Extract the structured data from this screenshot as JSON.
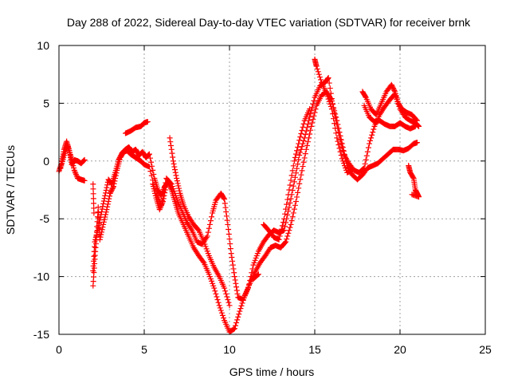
{
  "chart_data": {
    "type": "scatter",
    "title": "Day 288 of 2022, Sidereal Day-to-day VTEC variation (SDTVAR) for receiver brnk",
    "xlabel": "GPS time / hours",
    "ylabel": "SDTVAR / TECUs",
    "xlim": [
      0,
      25
    ],
    "ylim": [
      -15,
      10
    ],
    "xticks": [
      "0",
      "5",
      "10",
      "15",
      "20",
      "25"
    ],
    "yticks": [
      "-15",
      "-10",
      "-5",
      "0",
      "5",
      "10"
    ],
    "grid": true,
    "marker": "plus",
    "color": "#ff0000",
    "series": [
      {
        "values": [
          [
            0.0,
            -0.9
          ],
          [
            0.15,
            -0.2
          ],
          [
            0.3,
            1.0
          ],
          [
            0.45,
            1.7
          ],
          [
            0.6,
            0.9
          ],
          [
            0.75,
            -0.3
          ],
          [
            0.9,
            0.1
          ],
          [
            1.1,
            0.0
          ],
          [
            1.3,
            -0.2
          ],
          [
            1.5,
            0.1
          ],
          [
            2.0,
            -9.5
          ],
          [
            2.1,
            -7.0
          ],
          [
            2.3,
            -5.8
          ],
          [
            2.5,
            -4.4
          ],
          [
            2.7,
            -3.0
          ],
          [
            2.9,
            -1.6
          ],
          [
            3.1,
            -2.0
          ],
          [
            3.3,
            -1.0
          ],
          [
            3.5,
            0.1
          ],
          [
            3.7,
            0.7
          ],
          [
            3.9,
            1.0
          ],
          [
            4.1,
            1.2
          ],
          [
            4.3,
            0.8
          ],
          [
            4.5,
            1.0
          ],
          [
            4.7,
            0.5
          ],
          [
            4.9,
            0.8
          ],
          [
            5.1,
            0.3
          ],
          [
            5.3,
            0.6
          ],
          [
            5.6,
            -1.5
          ],
          [
            5.8,
            -2.5
          ],
          [
            6.0,
            -3.0
          ],
          [
            6.2,
            -2.2
          ],
          [
            6.4,
            -1.8
          ],
          [
            6.6,
            -2.5
          ],
          [
            6.8,
            -3.5
          ],
          [
            7.0,
            -4.5
          ],
          [
            7.3,
            -5.5
          ],
          [
            7.6,
            -6.5
          ],
          [
            7.9,
            -7.5
          ],
          [
            8.2,
            -8.2
          ],
          [
            8.5,
            -8.8
          ],
          [
            8.8,
            -9.8
          ],
          [
            9.1,
            -11.0
          ],
          [
            9.4,
            -12.5
          ],
          [
            9.7,
            -13.8
          ],
          [
            10.0,
            -14.8
          ],
          [
            10.3,
            -14.5
          ],
          [
            10.6,
            -13.0
          ],
          [
            10.9,
            -11.6
          ],
          [
            11.2,
            -10.6
          ],
          [
            11.5,
            -9.6
          ],
          [
            11.8,
            -8.8
          ],
          [
            12.1,
            -8.2
          ],
          [
            12.4,
            -7.5
          ],
          [
            12.7,
            -7.3
          ],
          [
            13.0,
            -7.5
          ],
          [
            13.3,
            -7.0
          ],
          [
            13.6,
            -5.5
          ],
          [
            13.9,
            -3.5
          ],
          [
            14.2,
            -1.2
          ],
          [
            14.5,
            1.0
          ],
          [
            14.8,
            3.0
          ],
          [
            15.1,
            4.8
          ],
          [
            15.4,
            5.7
          ],
          [
            15.7,
            6.0
          ],
          [
            16.0,
            5.2
          ],
          [
            16.3,
            3.5
          ],
          [
            16.6,
            1.5
          ],
          [
            16.9,
            -0.4
          ],
          [
            17.2,
            -1.2
          ],
          [
            17.5,
            -1.6
          ],
          [
            17.8,
            -1.2
          ],
          [
            18.1,
            -0.6
          ],
          [
            18.4,
            -0.4
          ],
          [
            18.7,
            -0.2
          ],
          [
            19.0,
            0.2
          ],
          [
            19.3,
            0.6
          ],
          [
            19.6,
            1.0
          ],
          [
            19.9,
            1.0
          ],
          [
            20.2,
            0.9
          ],
          [
            20.5,
            1.1
          ],
          [
            20.8,
            1.5
          ],
          [
            21.0,
            1.6
          ]
        ]
      },
      {
        "values": [
          [
            0.1,
            -0.6
          ],
          [
            0.3,
            0.5
          ],
          [
            0.5,
            1.4
          ],
          [
            0.7,
            0.4
          ],
          [
            0.9,
            -0.8
          ],
          [
            1.1,
            -1.5
          ],
          [
            1.3,
            -1.6
          ],
          [
            1.5,
            -1.7
          ],
          [
            2.0,
            -10.8
          ],
          [
            2.1,
            -8.5
          ],
          [
            2.2,
            -6.5
          ],
          [
            2.3,
            -4.0
          ],
          [
            2.4,
            -6.8
          ],
          [
            2.6,
            -5.5
          ],
          [
            2.8,
            -4.2
          ],
          [
            3.0,
            -2.8
          ],
          [
            3.2,
            -2.2
          ],
          [
            3.4,
            -0.8
          ],
          [
            3.6,
            0.3
          ],
          [
            3.8,
            0.8
          ],
          [
            4.0,
            0.9
          ],
          [
            4.2,
            0.6
          ],
          [
            4.4,
            0.4
          ],
          [
            4.6,
            0.2
          ],
          [
            4.8,
            0.0
          ],
          [
            5.0,
            -0.3
          ],
          [
            5.3,
            -0.5
          ],
          [
            5.7,
            -2.8
          ],
          [
            6.0,
            -3.8
          ],
          [
            6.3,
            -1.5
          ],
          [
            6.6,
            -2.0
          ],
          [
            6.9,
            -3.2
          ],
          [
            7.2,
            -4.3
          ],
          [
            7.5,
            -5.3
          ],
          [
            7.8,
            -6.0
          ],
          [
            8.1,
            -7.0
          ],
          [
            8.4,
            -7.2
          ],
          [
            8.7,
            -6.5
          ],
          [
            9.0,
            -4.5
          ],
          [
            9.2,
            -3.4
          ],
          [
            9.5,
            -2.8
          ],
          [
            9.7,
            -3.3
          ],
          [
            9.9,
            -5.5
          ],
          [
            10.1,
            -8.0
          ],
          [
            10.3,
            -10.0
          ],
          [
            10.5,
            -11.8
          ],
          [
            10.8,
            -12.0
          ],
          [
            11.1,
            -11.0
          ],
          [
            11.4,
            -9.0
          ],
          [
            11.7,
            -7.8
          ],
          [
            12.0,
            -7.0
          ],
          [
            12.3,
            -6.4
          ],
          [
            12.6,
            -6.0
          ],
          [
            12.9,
            -6.2
          ],
          [
            13.2,
            -6.0
          ],
          [
            13.5,
            -4.0
          ],
          [
            13.8,
            -1.8
          ],
          [
            14.1,
            0.5
          ],
          [
            14.4,
            2.0
          ],
          [
            14.7,
            3.8
          ],
          [
            15.0,
            5.5
          ],
          [
            15.3,
            6.5
          ],
          [
            15.6,
            6.8
          ],
          [
            15.8,
            7.2
          ],
          [
            16.1,
            4.5
          ],
          [
            16.4,
            2.5
          ],
          [
            16.7,
            0.6
          ],
          [
            17.0,
            -0.2
          ],
          [
            17.3,
            -0.8
          ],
          [
            17.6,
            -1.0
          ],
          [
            17.9,
            -0.6
          ],
          [
            18.2,
            1.5
          ],
          [
            18.5,
            3.0
          ],
          [
            18.8,
            4.0
          ],
          [
            19.1,
            4.7
          ],
          [
            19.4,
            5.3
          ],
          [
            19.7,
            5.8
          ],
          [
            20.0,
            4.5
          ],
          [
            20.3,
            3.8
          ],
          [
            20.6,
            3.5
          ],
          [
            20.9,
            3.3
          ],
          [
            21.1,
            3.0
          ]
        ]
      },
      {
        "values": [
          [
            2.0,
            -2.0
          ],
          [
            2.05,
            -4.5
          ],
          [
            3.9,
            2.4
          ],
          [
            4.2,
            2.6
          ],
          [
            4.5,
            2.9
          ],
          [
            4.8,
            3.0
          ],
          [
            5.0,
            3.3
          ],
          [
            5.2,
            3.4
          ],
          [
            5.5,
            -2.0
          ],
          [
            5.7,
            -3.2
          ],
          [
            5.9,
            -4.2
          ],
          [
            6.1,
            -3.5
          ],
          [
            6.3,
            -2.0
          ],
          [
            6.5,
            2.0
          ],
          [
            6.7,
            0.0
          ],
          [
            6.9,
            -1.5
          ],
          [
            7.1,
            -2.8
          ],
          [
            7.3,
            -3.8
          ],
          [
            7.6,
            -4.8
          ],
          [
            7.9,
            -5.5
          ],
          [
            8.2,
            -6.0
          ],
          [
            8.5,
            -7.0
          ],
          [
            8.8,
            -8.2
          ],
          [
            9.1,
            -9.2
          ],
          [
            9.4,
            -10.0
          ],
          [
            9.7,
            -11.0
          ],
          [
            10.0,
            -12.5
          ],
          [
            11.4,
            -10.2
          ],
          [
            11.7,
            -9.8
          ],
          [
            12.0,
            -5.5
          ],
          [
            12.3,
            -6.0
          ],
          [
            12.6,
            -6.6
          ],
          [
            12.9,
            -6.8
          ],
          [
            13.2,
            -5.0
          ],
          [
            13.5,
            -2.5
          ],
          [
            13.8,
            0.0
          ],
          [
            14.1,
            1.8
          ],
          [
            14.4,
            3.5
          ],
          [
            14.7,
            4.5
          ],
          [
            15.0,
            8.8
          ],
          [
            15.1,
            8.2
          ],
          [
            15.4,
            6.8
          ],
          [
            15.7,
            5.8
          ],
          [
            16.0,
            4.5
          ],
          [
            16.3,
            2.0
          ],
          [
            16.6,
            0.2
          ],
          [
            16.9,
            -1.0
          ],
          [
            17.2,
            -0.8
          ],
          [
            17.8,
            6.0
          ],
          [
            18.0,
            5.5
          ],
          [
            18.3,
            4.5
          ],
          [
            18.6,
            4.0
          ],
          [
            18.9,
            5.0
          ],
          [
            19.2,
            6.0
          ],
          [
            19.5,
            6.6
          ],
          [
            19.7,
            6.0
          ],
          [
            19.9,
            5.0
          ],
          [
            20.1,
            4.5
          ],
          [
            20.4,
            4.2
          ],
          [
            20.7,
            4.0
          ],
          [
            21.0,
            3.5
          ],
          [
            17.9,
            4.8
          ],
          [
            18.2,
            3.8
          ],
          [
            18.5,
            3.4
          ],
          [
            18.8,
            3.5
          ],
          [
            19.1,
            3.2
          ],
          [
            19.4,
            3.0
          ],
          [
            19.7,
            3.0
          ],
          [
            20.0,
            3.3
          ],
          [
            20.3,
            3.0
          ],
          [
            20.6,
            2.8
          ],
          [
            20.9,
            3.0
          ],
          [
            20.5,
            -0.4
          ],
          [
            20.6,
            -1.0
          ],
          [
            20.8,
            -1.5
          ],
          [
            20.9,
            -2.5
          ],
          [
            21.0,
            -2.8
          ],
          [
            21.1,
            -3.1
          ],
          [
            20.7,
            -2.9
          ]
        ]
      }
    ]
  }
}
